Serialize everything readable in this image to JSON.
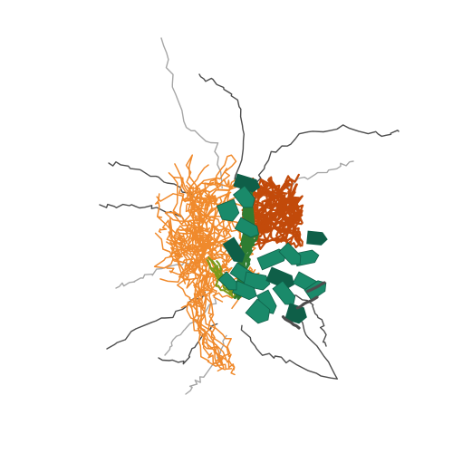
{
  "image": {
    "kind": "protein-structure-ensemble-render",
    "background": "#ffffff"
  },
  "palette": {
    "coil_grey": "#4d4d4d",
    "coil_light_grey": "#a6a6a6",
    "orange_coil": "#f08a2c",
    "dark_orange": "#c24a0a",
    "teal_sheet": "#1a8a6a",
    "dark_teal": "#0f5f48",
    "green_helix": "#2e7d32",
    "olive_loop": "#7a9a1a"
  }
}
